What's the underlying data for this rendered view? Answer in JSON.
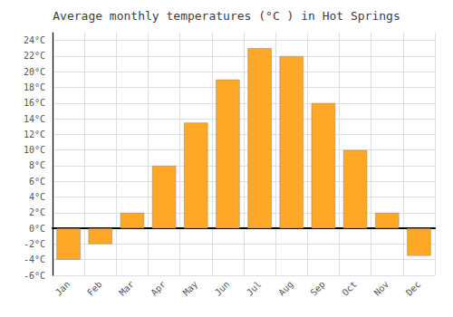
{
  "chart_data": {
    "type": "bar",
    "title": "Average monthly temperatures (°C ) in Hot Springs",
    "categories": [
      "Jan",
      "Feb",
      "Mar",
      "Apr",
      "May",
      "Jun",
      "Jul",
      "Aug",
      "Sep",
      "Oct",
      "Nov",
      "Dec"
    ],
    "values": [
      -4,
      -2,
      2,
      8,
      13.5,
      19,
      23,
      22,
      16,
      10,
      2,
      -3.5
    ],
    "color": "#FFA726",
    "ylim": [
      -6,
      25
    ],
    "yticks": [
      {
        "value": -6,
        "label": "-6°C"
      },
      {
        "value": -4,
        "label": "-4°C"
      },
      {
        "value": -2,
        "label": "-2°C"
      },
      {
        "value": 0,
        "label": "0°C"
      },
      {
        "value": 2,
        "label": "2°C"
      },
      {
        "value": 4,
        "label": "4°C"
      },
      {
        "value": 6,
        "label": "6°C"
      },
      {
        "value": 8,
        "label": "8°C"
      },
      {
        "value": 10,
        "label": "10°C"
      },
      {
        "value": 12,
        "label": "12°C"
      },
      {
        "value": 14,
        "label": "14°C"
      },
      {
        "value": 16,
        "label": "16°C"
      },
      {
        "value": 18,
        "label": "18°C"
      },
      {
        "value": 20,
        "label": "20°C"
      },
      {
        "value": 22,
        "label": "22°C"
      },
      {
        "value": 24,
        "label": "24°C"
      }
    ],
    "grid": true
  }
}
